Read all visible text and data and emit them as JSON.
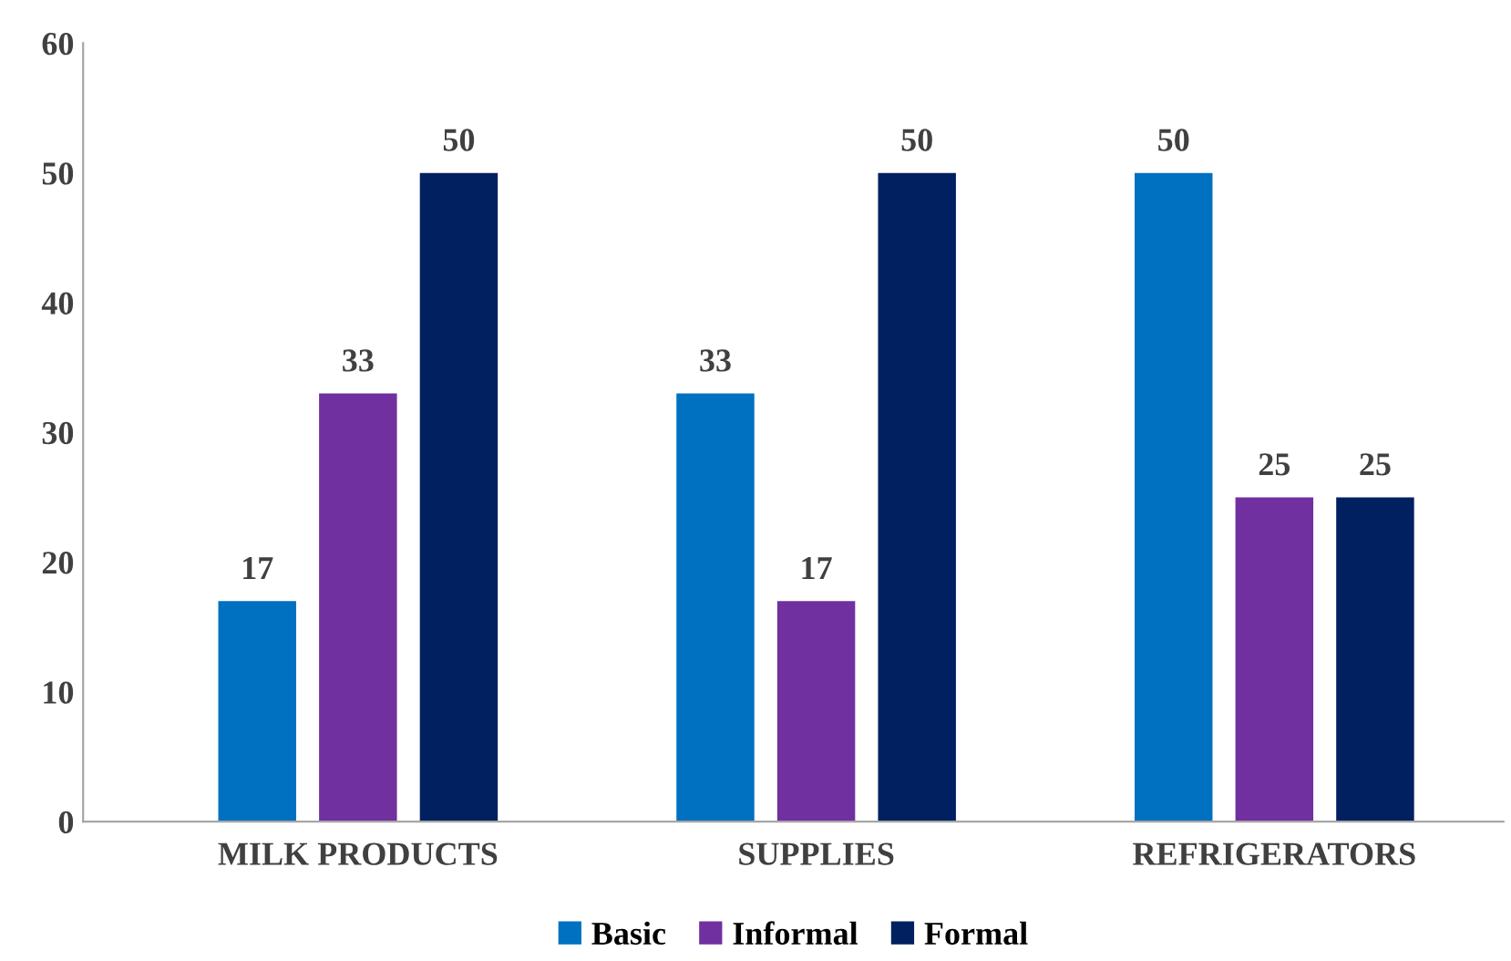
{
  "chart_data": {
    "type": "bar",
    "categories": [
      "MILK PRODUCTS",
      "SUPPLIES",
      "REFRIGERATORS"
    ],
    "series": [
      {
        "name": "Basic",
        "color": "#0070c0",
        "values": [
          17,
          33,
          50
        ]
      },
      {
        "name": "Informal",
        "color": "#7030a0",
        "values": [
          33,
          17,
          25
        ]
      },
      {
        "name": "Formal",
        "color": "#002060",
        "values": [
          50,
          50,
          25
        ]
      }
    ],
    "ylim": [
      0,
      60
    ],
    "yticks": [
      0,
      10,
      20,
      30,
      40,
      50,
      60
    ],
    "data_labels": true,
    "grid": false,
    "legend": "bottom"
  }
}
